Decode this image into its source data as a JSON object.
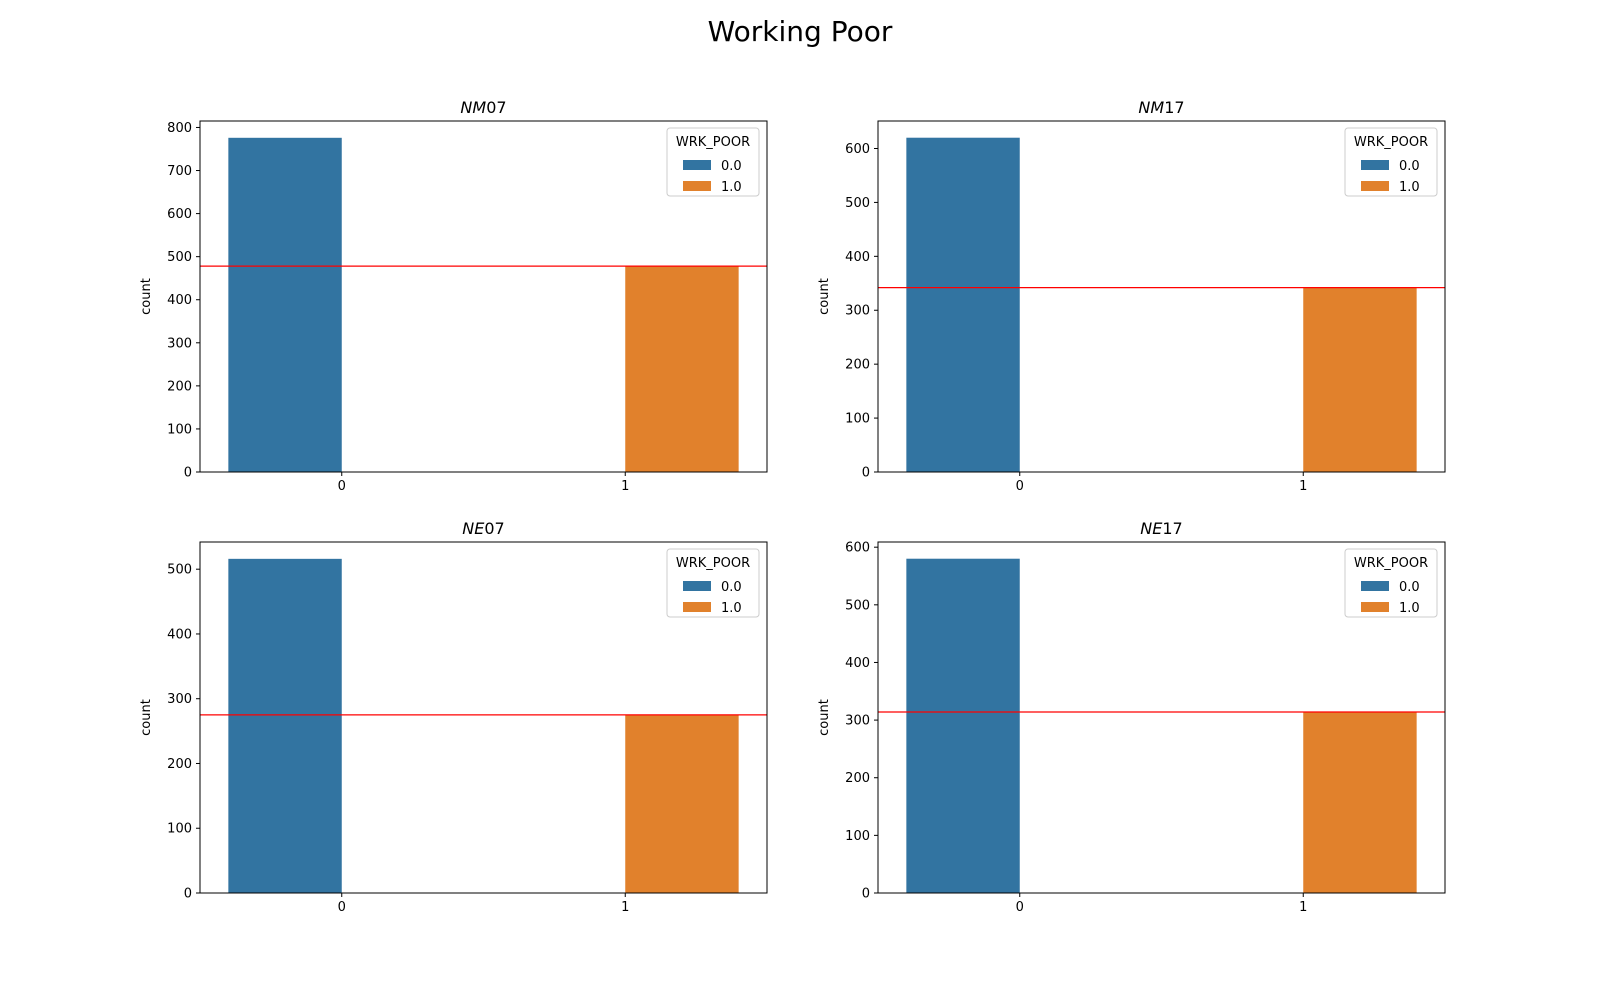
{
  "figure": {
    "title": "Working Poor"
  },
  "chart_data": [
    {
      "type": "bar",
      "title_italic": "NM",
      "title_rest": "07",
      "categories": [
        "0",
        "1"
      ],
      "series": [
        {
          "name": "0.0",
          "color": "#3274a1",
          "values": [
            776,
            0
          ]
        },
        {
          "name": "1.0",
          "color": "#e1812c",
          "values": [
            0,
            478
          ]
        }
      ],
      "ylabel": "count",
      "ylim": [
        0,
        815
      ],
      "yticks": [
        0,
        100,
        200,
        300,
        400,
        500,
        600,
        700,
        800
      ],
      "legend": {
        "title": "WRK_POOR",
        "position": "top-right"
      },
      "reference_line": {
        "value": 478,
        "color": "#ff0000"
      }
    },
    {
      "type": "bar",
      "title_italic": "NM",
      "title_rest": "17",
      "categories": [
        "0",
        "1"
      ],
      "series": [
        {
          "name": "0.0",
          "color": "#3274a1",
          "values": [
            620,
            0
          ]
        },
        {
          "name": "1.0",
          "color": "#e1812c",
          "values": [
            0,
            342
          ]
        }
      ],
      "ylabel": "count",
      "ylim": [
        0,
        651
      ],
      "yticks": [
        0,
        100,
        200,
        300,
        400,
        500,
        600
      ],
      "legend": {
        "title": "WRK_POOR",
        "position": "top-right"
      },
      "reference_line": {
        "value": 342,
        "color": "#ff0000"
      }
    },
    {
      "type": "bar",
      "title_italic": "NE",
      "title_rest": "07",
      "categories": [
        "0",
        "1"
      ],
      "series": [
        {
          "name": "0.0",
          "color": "#3274a1",
          "values": [
            516,
            0
          ]
        },
        {
          "name": "1.0",
          "color": "#e1812c",
          "values": [
            0,
            275
          ]
        }
      ],
      "ylabel": "count",
      "ylim": [
        0,
        542
      ],
      "yticks": [
        0,
        100,
        200,
        300,
        400,
        500
      ],
      "legend": {
        "title": "WRK_POOR",
        "position": "top-right"
      },
      "reference_line": {
        "value": 275,
        "color": "#ff0000"
      }
    },
    {
      "type": "bar",
      "title_italic": "NE",
      "title_rest": "17",
      "categories": [
        "0",
        "1"
      ],
      "series": [
        {
          "name": "0.0",
          "color": "#3274a1",
          "values": [
            580,
            0
          ]
        },
        {
          "name": "1.0",
          "color": "#e1812c",
          "values": [
            0,
            314
          ]
        }
      ],
      "ylabel": "count",
      "ylim": [
        0,
        609
      ],
      "yticks": [
        0,
        100,
        200,
        300,
        400,
        500,
        600
      ],
      "legend": {
        "title": "WRK_POOR",
        "position": "top-right"
      },
      "reference_line": {
        "value": 314,
        "color": "#ff0000"
      }
    }
  ]
}
